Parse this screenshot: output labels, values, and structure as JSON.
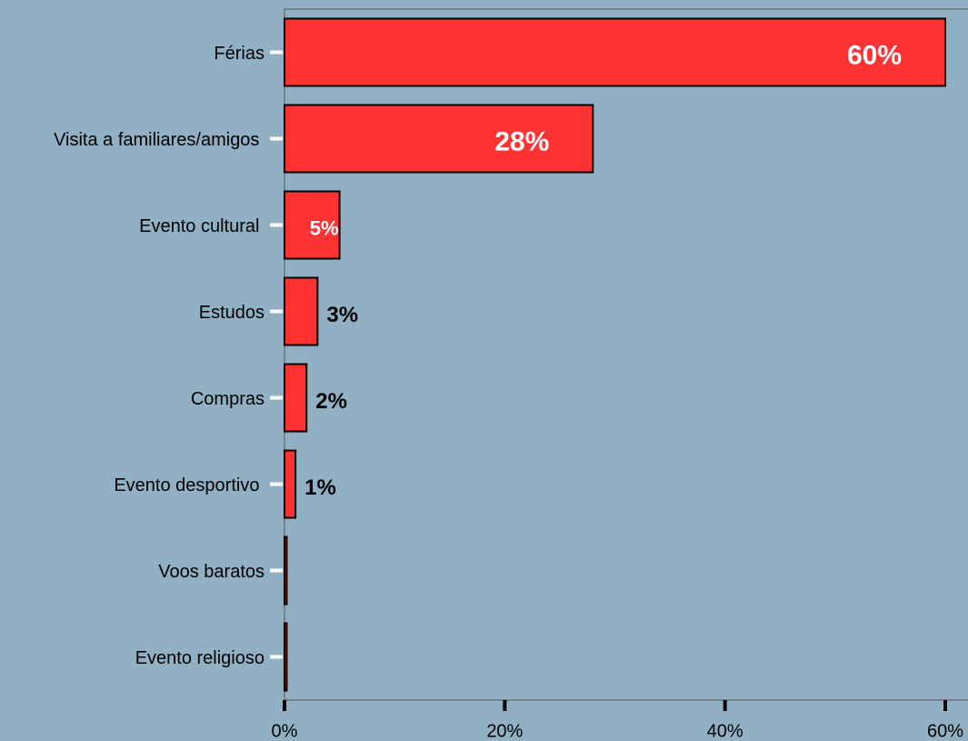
{
  "chart_data": {
    "type": "hbar",
    "categories": [
      "Férias",
      "Visita a familiares/amigos ",
      "Evento cultural ",
      "Estudos",
      "Compras",
      "Evento desportivo ",
      "Voos baratos",
      "Evento religioso"
    ],
    "values": [
      60,
      28,
      5,
      3,
      2,
      1,
      0.2,
      0.2
    ],
    "value_labels": [
      "60%",
      "28%",
      "5%",
      "3%",
      "2%",
      "1%",
      null,
      null
    ],
    "color": "#ff3333",
    "xlim": [
      0,
      60
    ],
    "xticks": [
      {
        "value": 0,
        "label": "0%"
      },
      {
        "value": 20,
        "label": "20%"
      },
      {
        "value": 40,
        "label": "40%"
      },
      {
        "value": 60,
        "label": "60%"
      }
    ]
  }
}
